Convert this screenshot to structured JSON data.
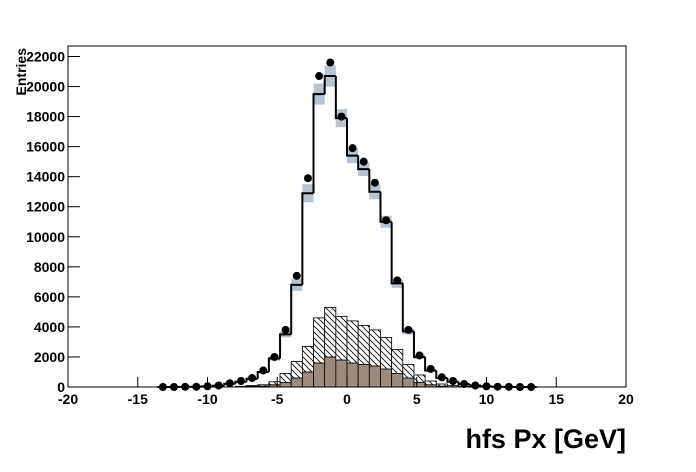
{
  "chart_data": {
    "type": "histogram",
    "x_label": "hfs Px [GeV]",
    "y_label": "Entries",
    "bins": [
      -13.6,
      -12.8,
      -12.0,
      -11.2,
      -10.4,
      -9.6,
      -8.8,
      -8.0,
      -7.2,
      -6.4,
      -5.6,
      -4.8,
      -4.0,
      -3.2,
      -2.4,
      -1.6,
      -0.8,
      0.0,
      0.8,
      1.6,
      2.4,
      3.2,
      4.0,
      4.8,
      5.6,
      6.4,
      7.2,
      8.0,
      8.8,
      9.6,
      10.4,
      11.2,
      12.0,
      12.8,
      13.6
    ],
    "data": {
      "color": "#000000",
      "values": [
        0,
        0,
        10,
        20,
        50,
        100,
        250,
        400,
        600,
        1100,
        2000,
        3800,
        7400,
        13900,
        20700,
        21600,
        18000,
        15900,
        15000,
        13600,
        11100,
        7100,
        3800,
        2100,
        1200,
        650,
        400,
        200,
        100,
        50,
        20,
        10,
        0,
        0
      ]
    },
    "mc": {
      "color": "#000000",
      "fill": "#fdfdfd",
      "band_color": "#a9b9c9",
      "values": [
        0,
        0,
        10,
        20,
        40,
        90,
        220,
        350,
        550,
        1000,
        1900,
        3500,
        6800,
        12900,
        19500,
        20700,
        17900,
        15400,
        14500,
        13000,
        11000,
        6900,
        3700,
        2000,
        1100,
        600,
        350,
        200,
        100,
        50,
        20,
        10,
        0,
        0
      ],
      "errors": [
        0,
        0,
        0,
        0,
        0,
        0,
        20,
        30,
        50,
        80,
        150,
        200,
        400,
        600,
        700,
        700,
        600,
        500,
        450,
        500,
        400,
        300,
        200,
        120,
        80,
        50,
        30,
        20,
        0,
        0,
        0,
        0,
        0,
        0
      ]
    },
    "series": [
      {
        "color": "#9b8b7e",
        "values": [
          0,
          0,
          0,
          0,
          0,
          0,
          0,
          20,
          40,
          60,
          150,
          300,
          600,
          1000,
          1600,
          2000,
          1800,
          1600,
          1500,
          1400,
          1200,
          900,
          600,
          300,
          150,
          60,
          20,
          0,
          0,
          0,
          0,
          0,
          0,
          0
        ]
      },
      {
        "color": "#000000",
        "hatch": true,
        "values": [
          0,
          0,
          0,
          0,
          0,
          0,
          0,
          30,
          60,
          90,
          200,
          600,
          1100,
          1700,
          3000,
          3300,
          2900,
          2800,
          2600,
          2400,
          2100,
          1600,
          900,
          500,
          250,
          140,
          80,
          50,
          0,
          0,
          0,
          0,
          0,
          0
        ]
      }
    ],
    "xlim": [
      -20,
      20
    ],
    "xticks": [
      -20,
      -15,
      -10,
      -5,
      0,
      5,
      10,
      15,
      20
    ],
    "ylim": [
      0,
      22700
    ],
    "yticks": [
      0,
      2000,
      4000,
      6000,
      8000,
      10000,
      12000,
      14000,
      16000,
      18000,
      20000,
      22000
    ]
  }
}
